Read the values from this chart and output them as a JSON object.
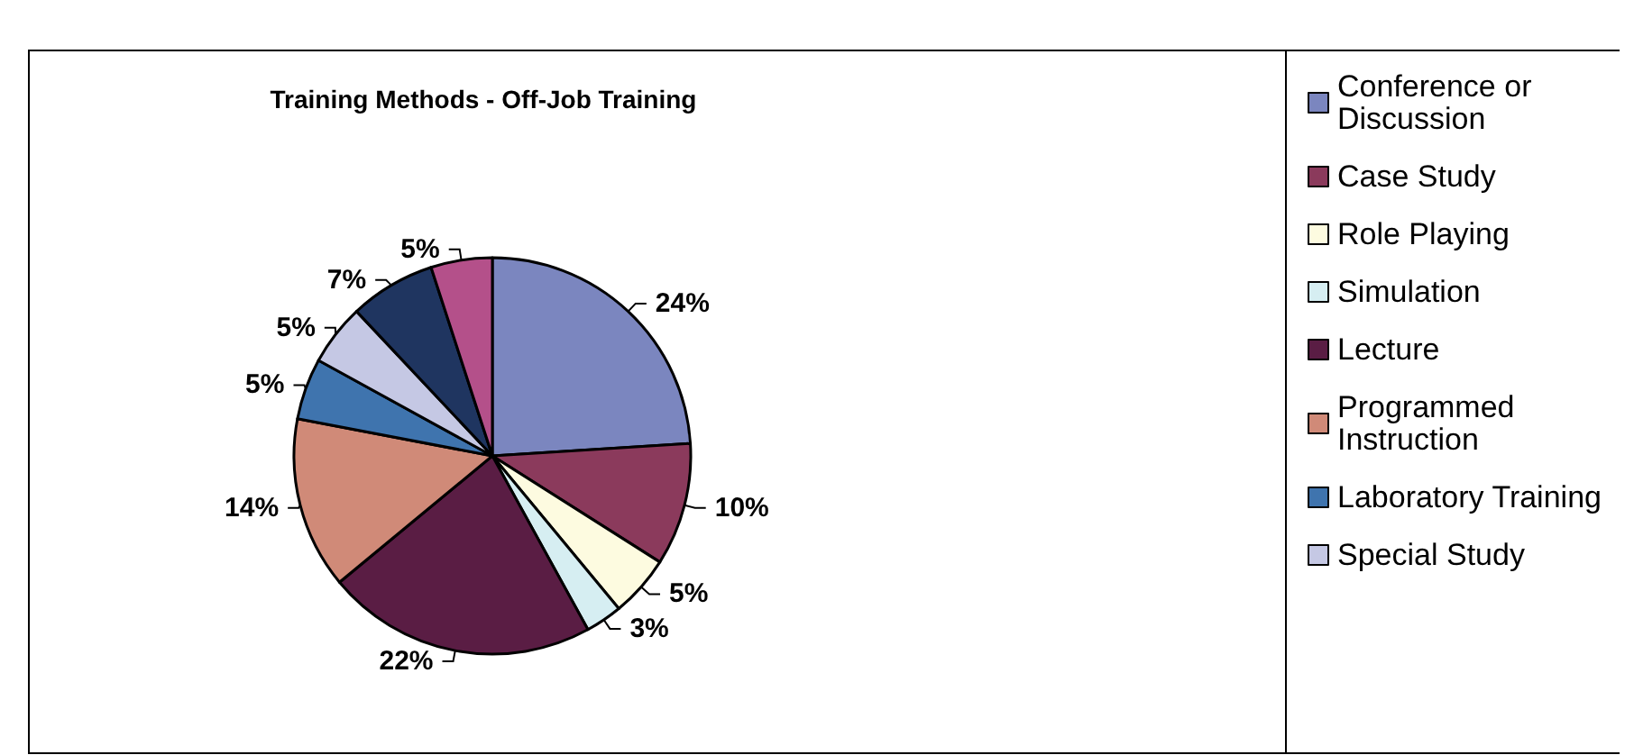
{
  "chart_data": {
    "type": "pie",
    "title": "Training Methods - Off-Job Training",
    "categories": [
      "Conference or Discussion",
      "Case Study",
      "Role Playing",
      "Simulation",
      "Lecture",
      "Programmed Instruction",
      "Laboratory Training",
      "Special Study",
      null,
      null
    ],
    "values": [
      24,
      10,
      5,
      3,
      22,
      14,
      5,
      5,
      7,
      5
    ],
    "value_labels": [
      "24%",
      "10%",
      "5%",
      "3%",
      "22%",
      "14%",
      "5%",
      "5%",
      "7%",
      "5%"
    ],
    "colors": [
      "#7b86bf",
      "#8b3a5c",
      "#fdfbe0",
      "#d6eef2",
      "#5a1d44",
      "#d08a78",
      "#3f74ae",
      "#c5c8e4",
      "#1f3560",
      "#b4508a"
    ],
    "legend": "right"
  }
}
